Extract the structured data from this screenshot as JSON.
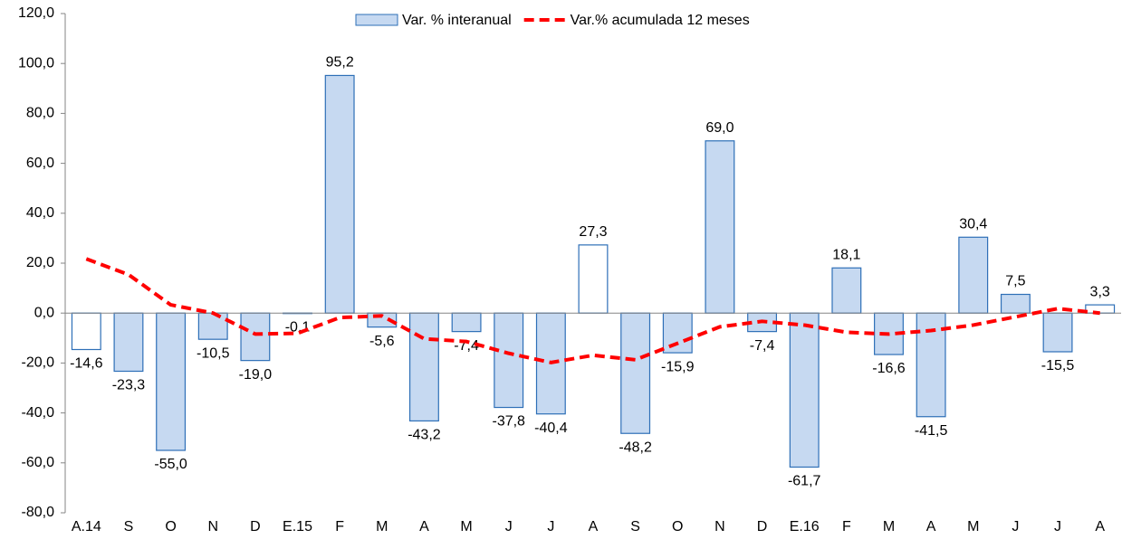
{
  "chart_data": {
    "type": "bar",
    "categories": [
      "A.14",
      "S",
      "O",
      "N",
      "D",
      "E.15",
      "F",
      "M",
      "A",
      "M",
      "J",
      "J",
      "A",
      "S",
      "O",
      "N",
      "D",
      "E.16",
      "F",
      "M",
      "A",
      "M",
      "J",
      "J",
      "A"
    ],
    "series": [
      {
        "name": "Var. % interanual",
        "type": "bar",
        "color": "#c6d9f1",
        "edge_color": "#2e6fb7",
        "fills": [
          "#ffffff",
          "#c6d9f1",
          "#c6d9f1",
          "#c6d9f1",
          "#c6d9f1",
          "#c6d9f1",
          "#c6d9f1",
          "#c6d9f1",
          "#c6d9f1",
          "#c6d9f1",
          "#c6d9f1",
          "#c6d9f1",
          "#ffffff",
          "#c6d9f1",
          "#c6d9f1",
          "#c6d9f1",
          "#c6d9f1",
          "#c6d9f1",
          "#c6d9f1",
          "#c6d9f1",
          "#c6d9f1",
          "#c6d9f1",
          "#c6d9f1",
          "#c6d9f1",
          "#ffffff"
        ],
        "values": [
          -14.6,
          -23.3,
          -55.0,
          -10.5,
          -19.0,
          -0.1,
          95.2,
          -5.6,
          -43.2,
          -7.4,
          -37.8,
          -40.4,
          27.3,
          -48.2,
          -15.9,
          69.0,
          -7.4,
          -61.7,
          18.1,
          -16.6,
          -41.5,
          30.4,
          7.5,
          -15.5,
          3.3
        ],
        "value_labels": [
          "-14,6",
          "-23,3",
          "-55,0",
          "-10,5",
          "-19,0",
          "-0,1",
          "95,2",
          "-5,6",
          "-43,2",
          "-7,4",
          "-37,8",
          "-40,4",
          "27,3",
          "-48,2",
          "-15,9",
          "69,0",
          "-7,4",
          "-61,7",
          "18,1",
          "-16,6",
          "-41,5",
          "30,4",
          "7,5",
          "-15,5",
          "3,3"
        ]
      },
      {
        "name": "Var.% acumulada 12 meses",
        "type": "line",
        "color": "#ff0000",
        "dashed": true,
        "values": [
          21.7,
          15.4,
          3.3,
          0.0,
          -8.4,
          -8.1,
          -1.8,
          -1.1,
          -10.3,
          -11.4,
          -16.1,
          -19.8,
          -16.9,
          -18.7,
          -12.1,
          -5.5,
          -3.3,
          -4.8,
          -7.7,
          -8.4,
          -7.0,
          -4.8,
          -1.5,
          1.8,
          0.0
        ]
      }
    ],
    "ylim": [
      -80,
      120
    ],
    "yticks": [
      {
        "value": -80,
        "label": "-80,0"
      },
      {
        "value": -60,
        "label": "-60,0"
      },
      {
        "value": -40,
        "label": "-40,0"
      },
      {
        "value": -20,
        "label": "-20,0"
      },
      {
        "value": 0,
        "label": "0,0"
      },
      {
        "value": 20,
        "label": "20,0"
      },
      {
        "value": 40,
        "label": "40,0"
      },
      {
        "value": 60,
        "label": "60,0"
      },
      {
        "value": 80,
        "label": "80,0"
      },
      {
        "value": 100,
        "label": "100,0"
      },
      {
        "value": 120,
        "label": "120,0"
      }
    ],
    "grid": false,
    "legend": "top"
  }
}
